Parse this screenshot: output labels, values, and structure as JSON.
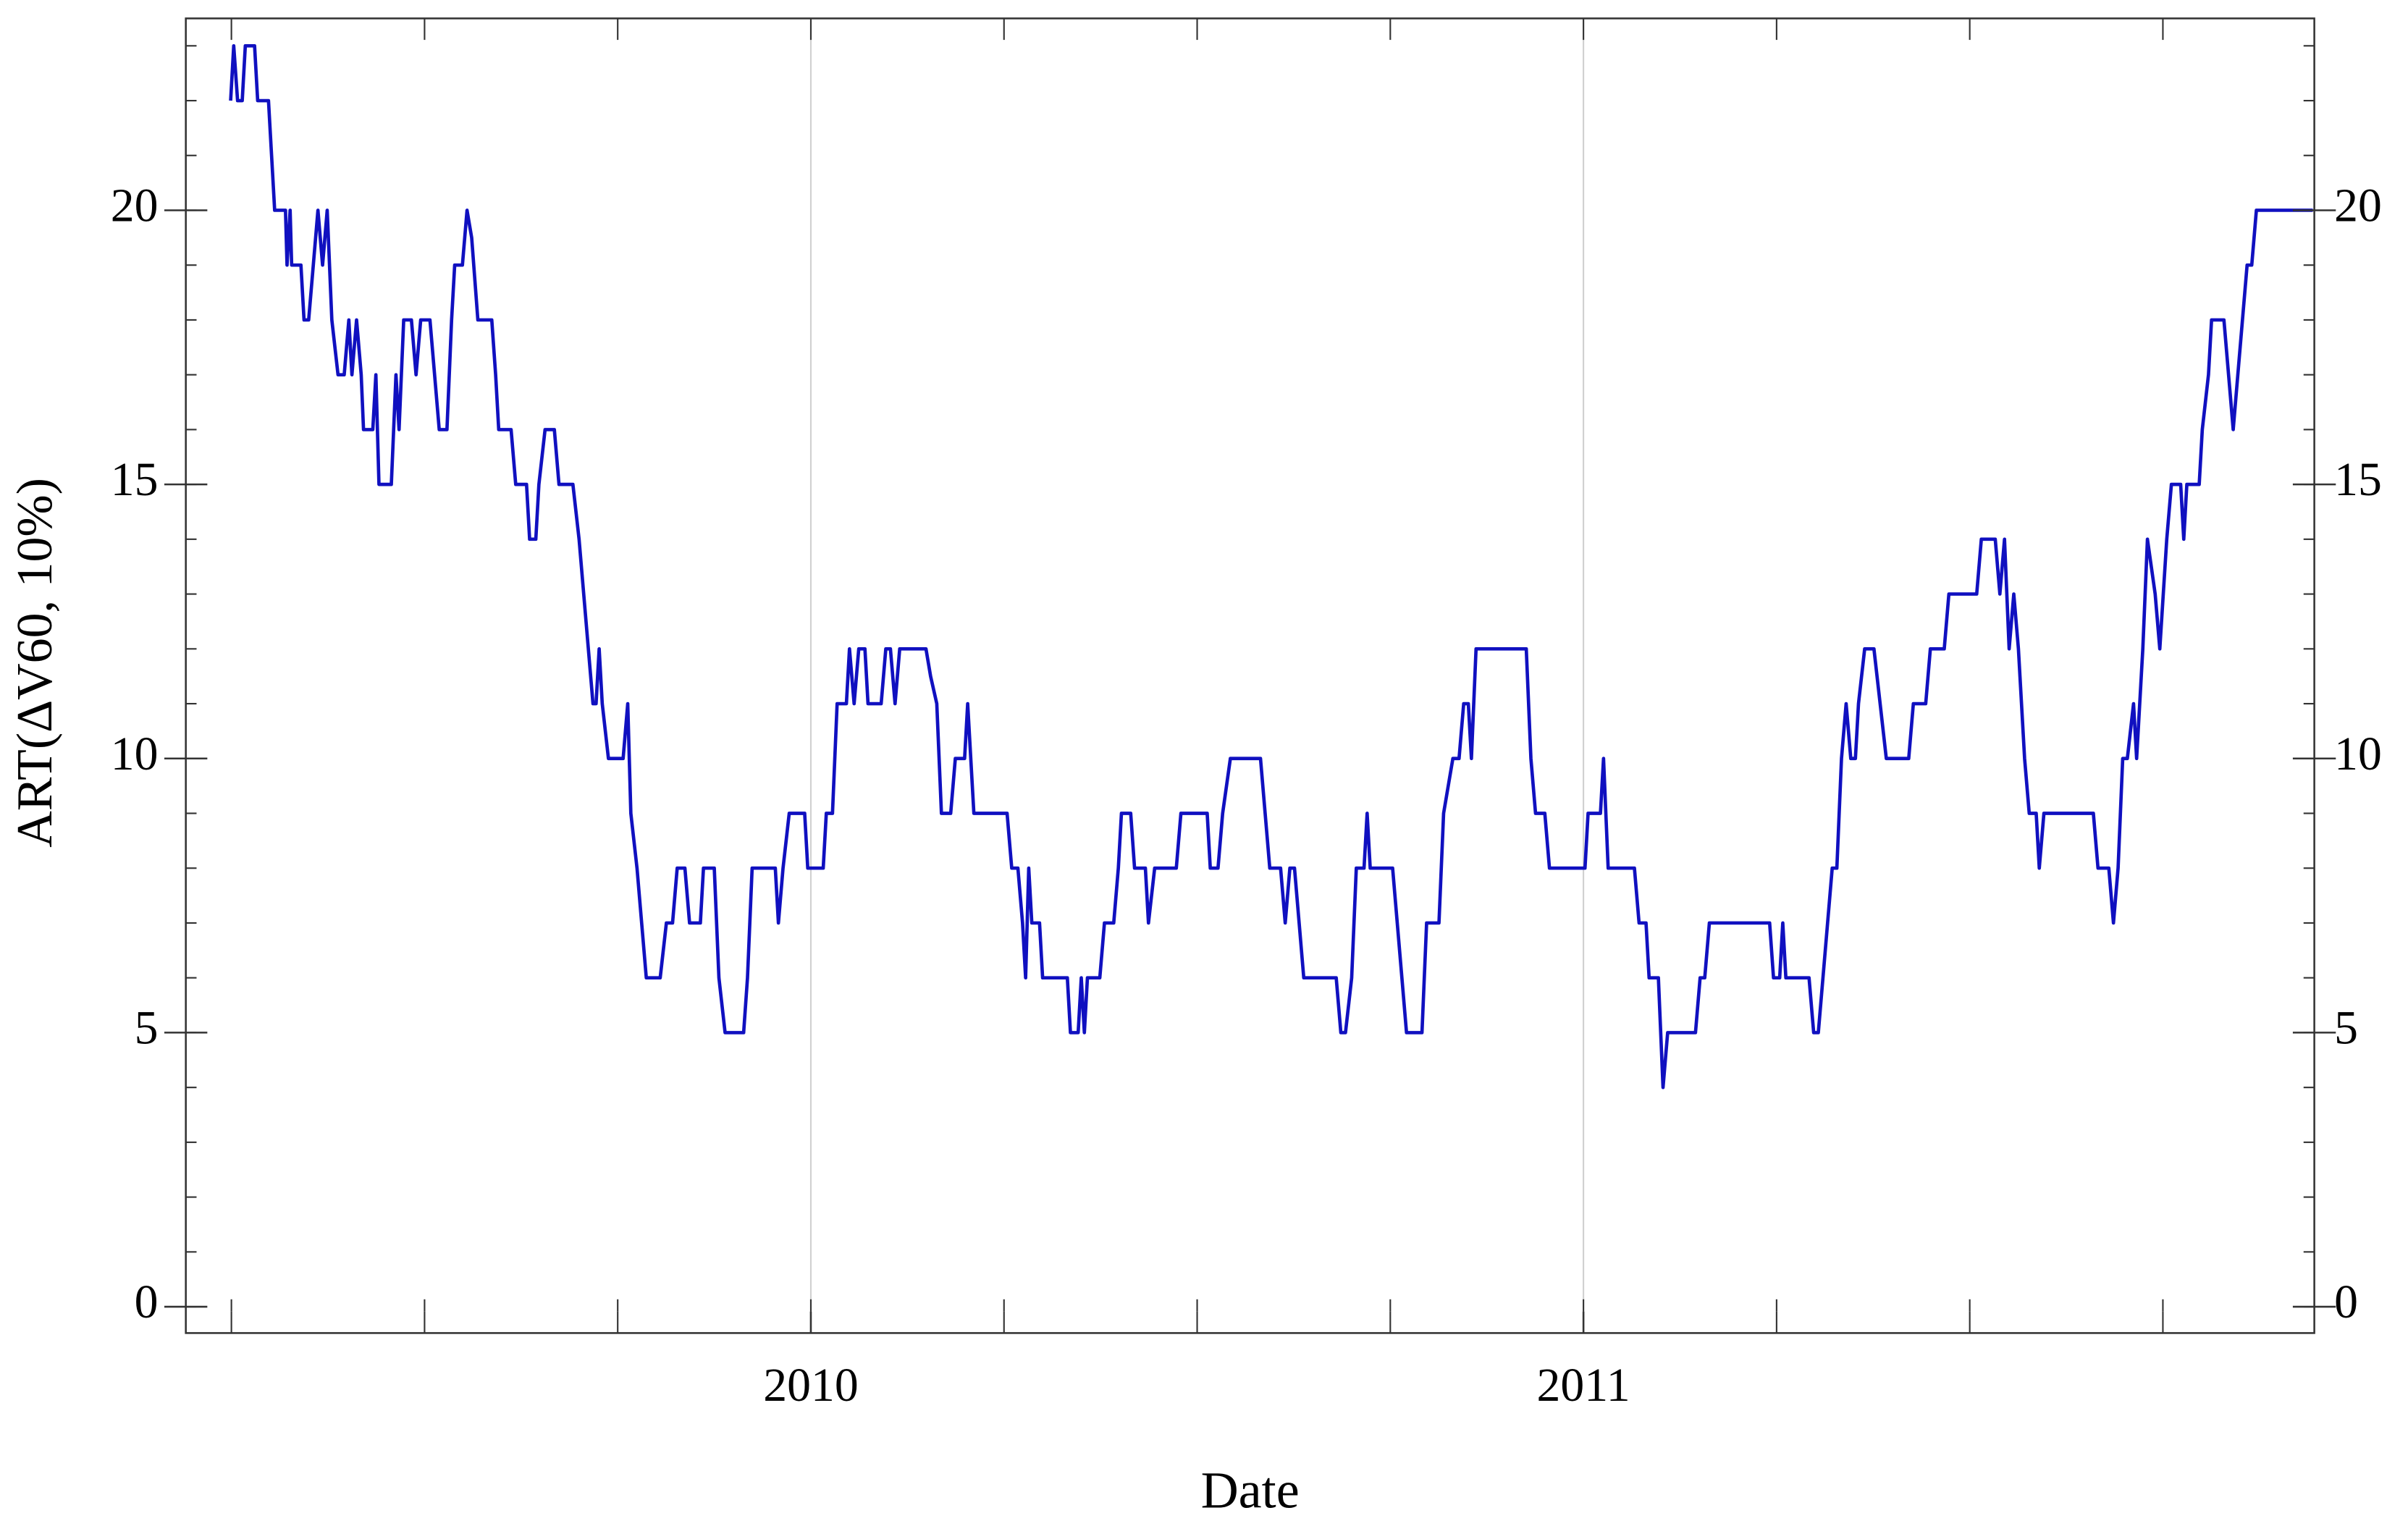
{
  "chart_data": {
    "type": "line",
    "x_label": "Date",
    "y_label": "ART(ΔV60, 10%)",
    "x": [
      2009.249,
      2009.253,
      2009.258,
      2009.264,
      2009.268,
      2009.28,
      2009.284,
      2009.298,
      2009.302,
      2009.306,
      2009.32,
      2009.322,
      2009.326,
      2009.328,
      2009.34,
      2009.344,
      2009.35,
      2009.356,
      2009.362,
      2009.368,
      2009.374,
      2009.38,
      2009.388,
      2009.396,
      2009.402,
      2009.406,
      2009.412,
      2009.418,
      2009.421,
      2009.433,
      2009.437,
      2009.441,
      2009.457,
      2009.463,
      2009.467,
      2009.473,
      2009.483,
      2009.489,
      2009.495,
      2009.507,
      2009.513,
      2009.519,
      2009.529,
      2009.535,
      2009.539,
      2009.549,
      2009.555,
      2009.561,
      2009.569,
      2009.587,
      2009.592,
      2009.596,
      2009.612,
      2009.618,
      2009.632,
      2009.636,
      2009.644,
      2009.648,
      2009.656,
      2009.668,
      2009.674,
      2009.692,
      2009.7,
      2009.706,
      2009.712,
      2009.718,
      2009.722,
      2009.726,
      2009.73,
      2009.738,
      2009.757,
      2009.763,
      2009.767,
      2009.775,
      2009.781,
      2009.787,
      2009.805,
      2009.813,
      2009.821,
      2009.827,
      2009.837,
      2009.843,
      2009.857,
      2009.861,
      2009.875,
      2009.881,
      2009.889,
      2009.913,
      2009.918,
      2009.924,
      2009.954,
      2009.958,
      2009.964,
      2009.972,
      2009.992,
      2009.996,
      2010.016,
      2010.02,
      2010.028,
      2010.034,
      2010.046,
      2010.05,
      2010.056,
      2010.062,
      2010.07,
      2010.074,
      2010.091,
      2010.097,
      2010.103,
      2010.109,
      2010.115,
      2010.149,
      2010.155,
      2010.163,
      2010.169,
      2010.181,
      2010.187,
      2010.199,
      2010.203,
      2010.211,
      2010.254,
      2010.26,
      2010.268,
      2010.274,
      2010.278,
      2010.282,
      2010.286,
      2010.296,
      2010.3,
      2010.332,
      2010.336,
      2010.346,
      2010.35,
      2010.354,
      2010.358,
      2010.374,
      2010.38,
      2010.392,
      2010.398,
      2010.402,
      2010.414,
      2010.419,
      2010.433,
      2010.437,
      2010.445,
      2010.473,
      2010.479,
      2010.513,
      2010.517,
      2010.527,
      2010.533,
      2010.543,
      2010.582,
      2010.588,
      2010.594,
      2010.608,
      2010.614,
      2010.62,
      2010.626,
      2010.632,
      2010.638,
      2010.68,
      2010.686,
      2010.692,
      2010.7,
      2010.706,
      2010.716,
      2010.72,
      2010.724,
      2010.753,
      2010.759,
      2010.765,
      2010.771,
      2010.791,
      2010.797,
      2010.813,
      2010.819,
      2010.831,
      2010.839,
      2010.845,
      2010.851,
      2010.855,
      2010.861,
      2010.926,
      2010.932,
      2010.938,
      2010.95,
      2010.956,
      2011.002,
      2011.006,
      2011.022,
      2011.026,
      2011.032,
      2011.066,
      2011.072,
      2011.081,
      2011.085,
      2011.097,
      2011.103,
      2011.109,
      2011.145,
      2011.151,
      2011.157,
      2011.163,
      2011.241,
      2011.246,
      2011.254,
      2011.258,
      2011.262,
      2011.292,
      2011.298,
      2011.304,
      2011.31,
      2011.316,
      2011.322,
      2011.328,
      2011.334,
      2011.34,
      2011.346,
      2011.352,
      2011.356,
      2011.364,
      2011.376,
      2011.384,
      2011.392,
      2011.421,
      2011.427,
      2011.443,
      2011.449,
      2011.467,
      2011.473,
      2011.509,
      2011.515,
      2011.533,
      2011.539,
      2011.545,
      2011.551,
      2011.557,
      2011.563,
      2011.571,
      2011.577,
      2011.586,
      2011.59,
      2011.596,
      2011.66,
      2011.666,
      2011.68,
      2011.686,
      2011.692,
      2011.698,
      2011.704,
      2011.712,
      2011.716,
      2011.724,
      2011.73,
      2011.74,
      2011.746,
      2011.755,
      2011.761,
      2011.773,
      2011.777,
      2011.781,
      2011.797,
      2011.801,
      2011.809,
      2011.813,
      2011.829,
      2011.835,
      2011.841,
      2011.847,
      2011.853,
      2011.859,
      2011.865,
      2011.871,
      2011.889,
      2011.944
    ],
    "series": [
      {
        "color": "#1010c0",
        "values": [
          22,
          23,
          22,
          22,
          23,
          23,
          22,
          22,
          21,
          20,
          20,
          19,
          20,
          19,
          19,
          18,
          18,
          19,
          20,
          19,
          20,
          18,
          17,
          17,
          18,
          17,
          18,
          17,
          16,
          16,
          17,
          15,
          15,
          17,
          16,
          18,
          18,
          17,
          18,
          18,
          17,
          16,
          16,
          18,
          19,
          19,
          20,
          19.5,
          18,
          18,
          17,
          16,
          16,
          15,
          15,
          14,
          14,
          15,
          16,
          16,
          15,
          15,
          14,
          13,
          12,
          11,
          11,
          12,
          11,
          10,
          10,
          11,
          9,
          8,
          7,
          6,
          6,
          7,
          7,
          8,
          8,
          7,
          7,
          8,
          8,
          6,
          5,
          5,
          6,
          8,
          8,
          7,
          8,
          9,
          9,
          8,
          8,
          9,
          9,
          11,
          11,
          12,
          11,
          12,
          12,
          11,
          11,
          12,
          12,
          11,
          12,
          12,
          11.5,
          11,
          9,
          9,
          10,
          10,
          11,
          9,
          9,
          8,
          8,
          7,
          6,
          8,
          7,
          7,
          6,
          6,
          5,
          5,
          6,
          5,
          6,
          6,
          7,
          7,
          8,
          9,
          9,
          8,
          8,
          7,
          8,
          8,
          9,
          9,
          8,
          8,
          9,
          10,
          10,
          9,
          8,
          8,
          7,
          8,
          8,
          7,
          6,
          6,
          5,
          5,
          6,
          8,
          8,
          9,
          8,
          8,
          7,
          6,
          5,
          5,
          7,
          7,
          9,
          10,
          10,
          11,
          11,
          10,
          12,
          12,
          10,
          9,
          9,
          8,
          8,
          9,
          9,
          10,
          8,
          8,
          7,
          7,
          6,
          6,
          4,
          5,
          5,
          6,
          6,
          7,
          7,
          6,
          6,
          7,
          6,
          6,
          5,
          5,
          6,
          7,
          8,
          8,
          10,
          11,
          10,
          10,
          11,
          12,
          12,
          11,
          10,
          10,
          11,
          11,
          12,
          12,
          13,
          13,
          14,
          14,
          13,
          14,
          12,
          13,
          12,
          10,
          9,
          9,
          8,
          9,
          9,
          8,
          8,
          7,
          8,
          10,
          10,
          11,
          10,
          12,
          14,
          13,
          12,
          14,
          15,
          15,
          14,
          15,
          15,
          16,
          17,
          18,
          18,
          17,
          16,
          17,
          18,
          19,
          19,
          20,
          20,
          20
        ]
      }
    ],
    "xlim": [
      2009.191,
      2011.946
    ],
    "ylim": [
      -0.48,
      23.5
    ],
    "xticks": [
      2010,
      2011
    ],
    "xminorticks": [
      2009.25,
      2009.5,
      2009.75,
      2010,
      2010.25,
      2010.5,
      2010.75,
      2011,
      2011.25,
      2011.5,
      2011.75
    ],
    "yticks": [
      0,
      5,
      10,
      15,
      20
    ],
    "yminorticks": [
      0,
      1,
      2,
      3,
      4,
      5,
      6,
      7,
      8,
      9,
      10,
      11,
      12,
      13,
      14,
      15,
      16,
      17,
      18,
      19,
      20,
      21,
      22,
      23
    ],
    "grid": "x",
    "grid_color": "#d0d0d0"
  }
}
